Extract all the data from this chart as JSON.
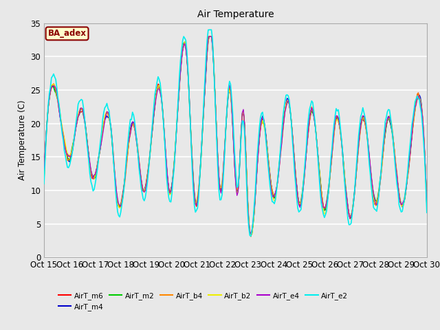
{
  "title": "Air Temperature",
  "ylabel": "Air Temperature (C)",
  "ylim": [
    0,
    35
  ],
  "yticks": [
    0,
    5,
    10,
    15,
    20,
    25,
    30,
    35
  ],
  "annotation_text": "BA_adex",
  "annotation_bg": "#ffffcc",
  "annotation_border": "#8b0000",
  "fig_bg": "#e8e8e8",
  "plot_bg": "#e8e8e8",
  "series_colors": {
    "AirT_m6": "#ff0000",
    "AirT_m4": "#0000cc",
    "AirT_m2": "#00cc00",
    "AirT_b4": "#ff8800",
    "AirT_b2": "#eeee00",
    "AirT_e4": "#aa00cc",
    "AirT_e2": "#00eeee"
  },
  "xtick_labels": [
    "Oct 15",
    "Oct 16",
    "Oct 17",
    "Oct 18",
    "Oct 19",
    "Oct 20",
    "Oct 21",
    "Oct 22",
    "Oct 23",
    "Oct 24",
    "Oct 25",
    "Oct 26",
    "Oct 27",
    "Oct 28",
    "Oct 29",
    "Oct 30"
  ],
  "n_days": 15,
  "pts_per_day": 24
}
